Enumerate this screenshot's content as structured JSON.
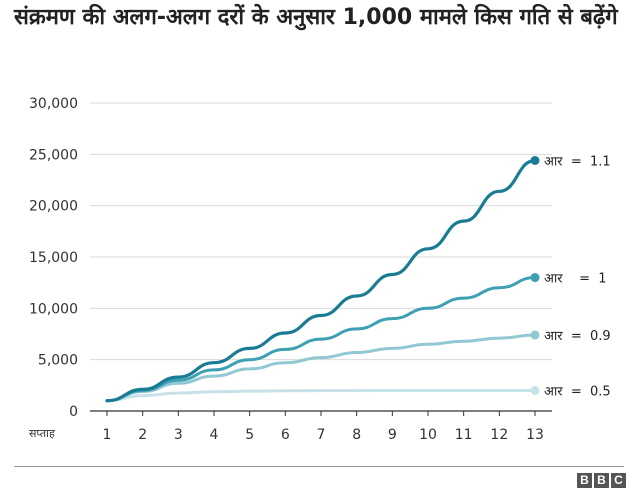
{
  "title": "संक्रमण की अलग-अलग दरों के अनुसार 1,000 मामले किस गति से बढ़ेंगे",
  "logo_letters": [
    "B",
    "B",
    "C"
  ],
  "colors": {
    "r_1_1": "#1a7b94",
    "r_1": "#3da0b3",
    "r_0_9": "#92c8d4",
    "r_0_5": "#c6e1e8",
    "grid": "#d9d9d9",
    "axis": "#333333"
  },
  "chart_data": {
    "type": "line",
    "title": "संक्रमण की अलग-अलग दरों के अनुसार 1,000 मामले किस गति से बढ़ेंगे",
    "xlabel": "सप्ताह",
    "ylabel": "",
    "x": [
      1,
      2,
      3,
      4,
      5,
      6,
      7,
      8,
      9,
      10,
      11,
      12,
      13
    ],
    "xlim": [
      1,
      13
    ],
    "ylim": [
      0,
      30000
    ],
    "yticks": [
      0,
      5000,
      10000,
      15000,
      20000,
      25000,
      30000
    ],
    "ytick_labels": [
      "0",
      "5,000",
      "10,000",
      "15,000",
      "20,000",
      "25,000",
      "30,000"
    ],
    "grid": true,
    "series": [
      {
        "name": "आर  =  1.1",
        "color_key": "r_1_1",
        "values": [
          1000,
          2100,
          3300,
          4700,
          6100,
          7600,
          9300,
          11200,
          13300,
          15800,
          18500,
          21400,
          24400
        ]
      },
      {
        "name": "आर    =  1",
        "color_key": "r_1",
        "values": [
          1000,
          2000,
          3000,
          4000,
          5000,
          6000,
          7000,
          8000,
          9000,
          10000,
          11000,
          12000,
          13000
        ]
      },
      {
        "name": "आर  =  0.9",
        "color_key": "r_0_9",
        "values": [
          1000,
          1900,
          2700,
          3400,
          4100,
          4700,
          5200,
          5700,
          6100,
          6500,
          6800,
          7100,
          7400
        ]
      },
      {
        "name": "आर  =  0.5",
        "color_key": "r_0_5",
        "values": [
          1000,
          1500,
          1750,
          1875,
          1940,
          1970,
          1985,
          1990,
          1995,
          1998,
          1999,
          2000,
          2000
        ]
      }
    ]
  }
}
